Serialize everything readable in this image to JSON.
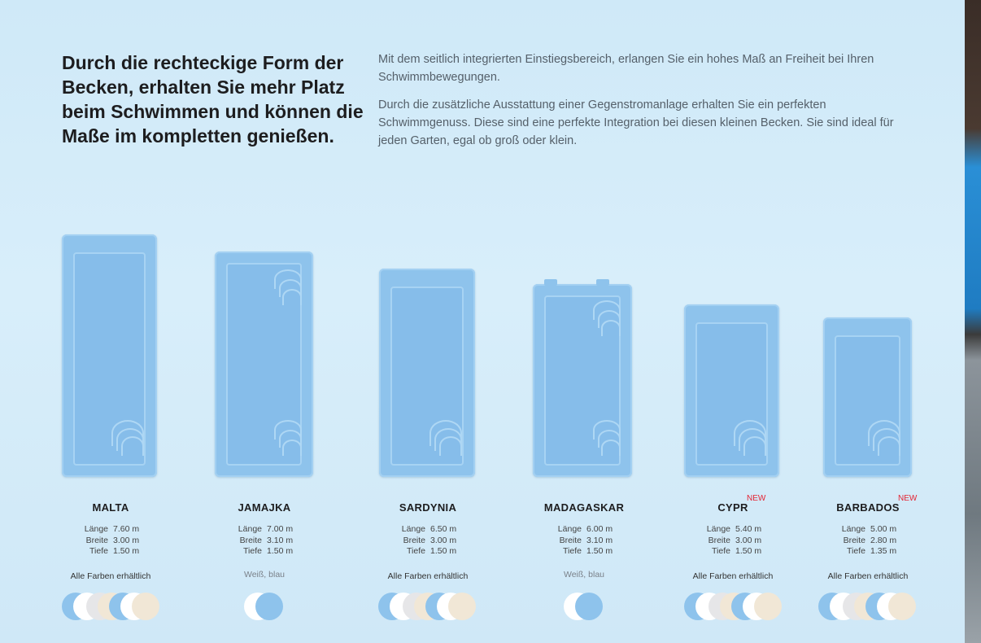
{
  "headline": "Durch die rechteckige Form der Becken, erhalten Sie mehr Platz beim Schwimmen und können die Maße im kompletten genießen.",
  "intro": {
    "p1": "Mit dem seitlich integrierten Einstiegsbereich, erlangen Sie ein hohes Maß an Freiheit bei Ihren Schwimmbewegungen.",
    "p2": "Durch die zusätzliche Ausstattung einer Gegenstromanlage erhalten Sie ein perfekten Schwimmgenuss. Diese sind eine perfekte Integration bei diesen kleinen Becken. Sie sind ideal für jeden Garten, egal ob groß oder klein."
  },
  "labels": {
    "length": "Länge",
    "width": "Breite",
    "depth": "Tiefe",
    "new": "NEW"
  },
  "colors_palette": {
    "blue": "#8ec3ec",
    "white": "#ffffff",
    "grey": "#e6e6e8",
    "sand": "#f1e7d6"
  },
  "pools": [
    {
      "name": "MALTA",
      "length": "7.60 m",
      "width": "3.00 m",
      "depth": "1.50 m",
      "colors": "Alle Farben erhältlich",
      "new": false
    },
    {
      "name": "JAMAJKA",
      "length": "7.00 m",
      "width": "3.10 m",
      "depth": "1.50 m",
      "colors": "Weiß, blau",
      "new": false
    },
    {
      "name": "SARDYNIA",
      "length": "6.50 m",
      "width": "3.00 m",
      "depth": "1.50 m",
      "colors": "Alle Farben erhältlich",
      "new": false
    },
    {
      "name": "MADAGASKAR",
      "length": "6.00 m",
      "width": "3.10 m",
      "depth": "1.50 m",
      "colors": "Weiß, blau",
      "new": false
    },
    {
      "name": "CYPR",
      "length": "5.40 m",
      "width": "3.00 m",
      "depth": "1.50 m",
      "colors": "Alle Farben erhältlich",
      "new": true
    },
    {
      "name": "BARBADOS",
      "length": "5.00 m",
      "width": "2.80 m",
      "depth": "1.35 m",
      "colors": "Alle Farben erhältlich",
      "new": true
    }
  ]
}
